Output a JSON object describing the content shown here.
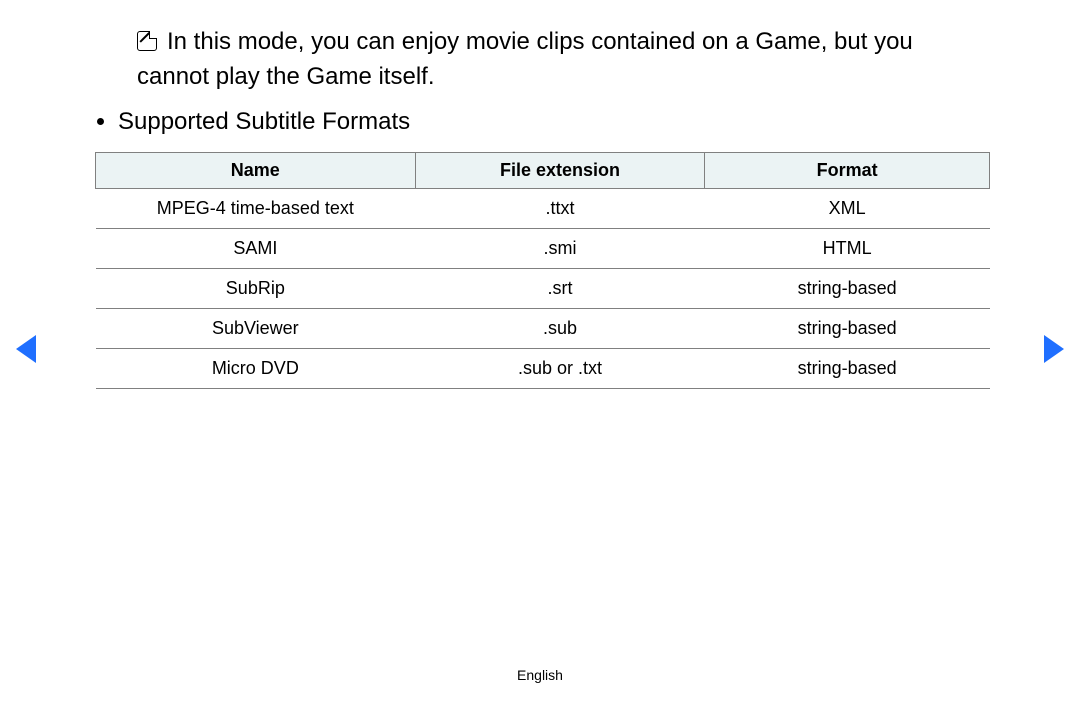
{
  "note": {
    "text": "In this mode, you can enjoy movie clips contained on a Game, but you cannot play the Game itself."
  },
  "section": {
    "heading": "Supported Subtitle Formats"
  },
  "table": {
    "header_bg": "#ebf3f4",
    "border_color": "#808080",
    "columns": [
      "Name",
      "File extension",
      "Format"
    ],
    "col_widths": [
      "320px",
      "290px",
      "285px"
    ],
    "rows": [
      [
        "MPEG-4 time-based text",
        ".ttxt",
        "XML"
      ],
      [
        "SAMI",
        ".smi",
        "HTML"
      ],
      [
        "SubRip",
        ".srt",
        "string-based"
      ],
      [
        "SubViewer",
        ".sub",
        "string-based"
      ],
      [
        "Micro DVD",
        ".sub or .txt",
        "string-based"
      ]
    ]
  },
  "nav": {
    "arrow_color": "#1f6fff"
  },
  "footer": {
    "language": "English"
  }
}
